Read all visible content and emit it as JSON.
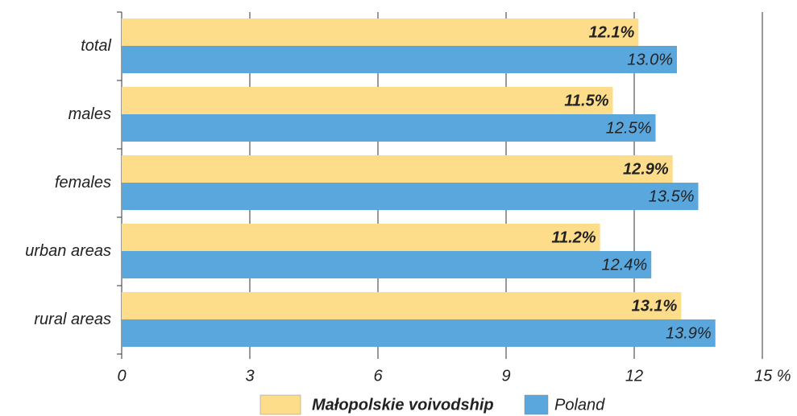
{
  "chart_data": {
    "type": "barh",
    "categories": [
      "total",
      "males",
      "females",
      "urban areas",
      "rural areas"
    ],
    "series": [
      {
        "name": "Małopolskie voivodship",
        "color": "#fedd8a",
        "values": [
          12.1,
          11.5,
          12.9,
          11.2,
          13.1
        ],
        "value_labels": [
          "12.1%",
          "11.5%",
          "12.9%",
          "11.2%",
          "13.1%"
        ]
      },
      {
        "name": "Poland",
        "color": "#5aa7de",
        "values": [
          13.0,
          12.5,
          13.5,
          12.4,
          13.9
        ],
        "value_labels": [
          "13.0%",
          "12.5%",
          "13.5%",
          "12.4%",
          "13.9%"
        ]
      }
    ],
    "xlim": [
      0,
      15
    ],
    "xticks": [
      0,
      3,
      6,
      9,
      12,
      {
        "value": 15,
        "label": "15 %"
      }
    ],
    "grid": true,
    "legend": "bottom"
  }
}
